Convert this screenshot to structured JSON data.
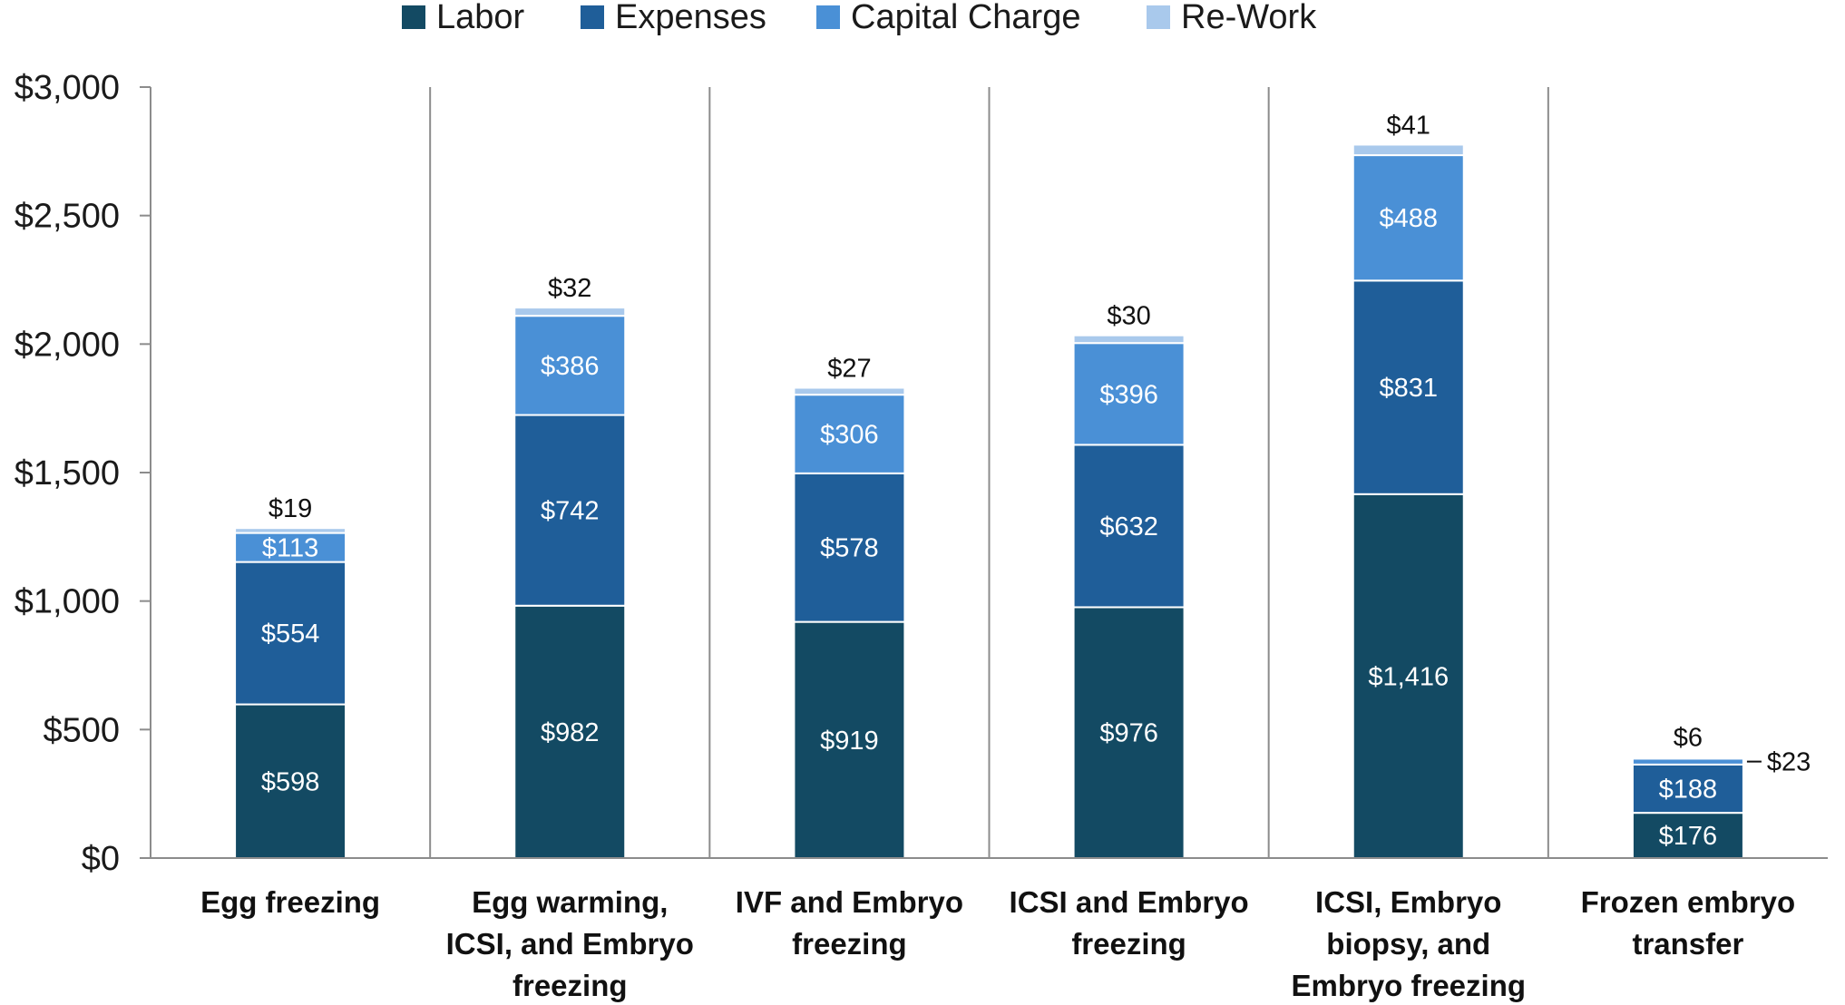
{
  "chart_data": {
    "type": "bar",
    "stacked": true,
    "title": "",
    "xlabel": "",
    "ylabel": "",
    "ylim": [
      0,
      3000
    ],
    "yticks": [
      0,
      500,
      1000,
      1500,
      2000,
      2500,
      3000
    ],
    "ytick_labels": [
      "$0",
      "$500",
      "$1,000",
      "$1,500",
      "$2,000",
      "$2,500",
      "$3,000"
    ],
    "legend_position": "top-center",
    "categories": [
      [
        "Egg freezing"
      ],
      [
        "Egg warming,",
        "ICSI, and Embryo",
        "freezing"
      ],
      [
        "IVF and Embryo",
        "freezing"
      ],
      [
        "ICSI and Embryo",
        "freezing"
      ],
      [
        "ICSI, Embryo",
        "biopsy, and",
        "Embryo freezing"
      ],
      [
        "Frozen embryo",
        "transfer"
      ]
    ],
    "series": [
      {
        "name": "Labor",
        "color": "#134a63",
        "values": [
          598,
          982,
          919,
          976,
          1416,
          176
        ],
        "labels": [
          "$598",
          "$982",
          "$919",
          "$976",
          "$1,416",
          "$176"
        ]
      },
      {
        "name": "Expenses",
        "color": "#1f5e99",
        "values": [
          554,
          742,
          578,
          632,
          831,
          188
        ],
        "labels": [
          "$554",
          "$742",
          "$578",
          "$632",
          "$831",
          "$188"
        ]
      },
      {
        "name": "Capital Charge",
        "color": "#4a90d6",
        "values": [
          113,
          386,
          306,
          396,
          488,
          23
        ],
        "labels": [
          "$113",
          "$386",
          "$306",
          "$396",
          "$488",
          "$23"
        ]
      },
      {
        "name": "Re-Work",
        "color": "#a9c9ec",
        "values": [
          19,
          32,
          27,
          30,
          41,
          6
        ],
        "labels": [
          "$19",
          "$32",
          "$27",
          "$30",
          "$41",
          "$6"
        ]
      }
    ],
    "axis_color": "#8c8c8c",
    "separator_color": "#8c8c8c"
  }
}
